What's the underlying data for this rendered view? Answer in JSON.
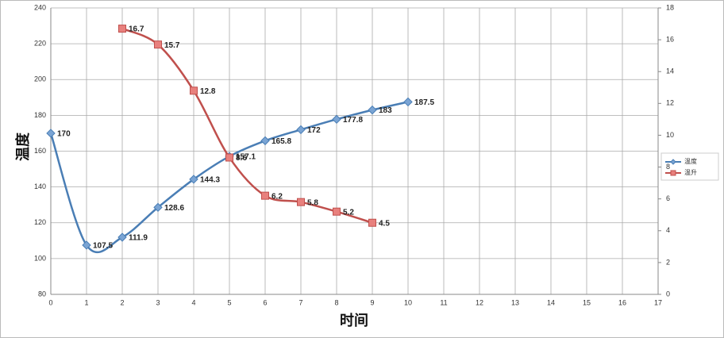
{
  "chart_data": {
    "type": "line",
    "x_label": "时间",
    "y_label": "温度",
    "xlim": [
      0,
      17
    ],
    "xticks": [
      0,
      1,
      2,
      3,
      4,
      5,
      6,
      7,
      8,
      9,
      10,
      11,
      12,
      13,
      14,
      15,
      16,
      17
    ],
    "ylim": [
      80,
      240
    ],
    "yticks": [
      80,
      100,
      120,
      140,
      160,
      180,
      200,
      220,
      240
    ],
    "y2lim": [
      0,
      18
    ],
    "y2ticks": [
      0,
      2,
      4,
      6,
      8,
      10,
      12,
      14,
      16,
      18
    ],
    "grid": true,
    "smooth": true,
    "legend": "right",
    "series": [
      {
        "name": "温度",
        "color": "#4a7eb5",
        "marker": "diamond",
        "axis": "y",
        "x": [
          0,
          1,
          2,
          3,
          4,
          5,
          6,
          7,
          8,
          9,
          10
        ],
        "values": [
          170,
          107.5,
          111.9,
          128.6,
          144.3,
          157.1,
          165.8,
          172,
          177.8,
          183,
          187.5
        ]
      },
      {
        "name": "温升",
        "color": "#c0504d",
        "marker": "square",
        "axis": "y2",
        "x": [
          2,
          3,
          4,
          5,
          6,
          7,
          8,
          9
        ],
        "values": [
          16.7,
          15.7,
          12.8,
          8.6,
          6.2,
          5.8,
          5.2,
          4.5
        ]
      }
    ]
  }
}
